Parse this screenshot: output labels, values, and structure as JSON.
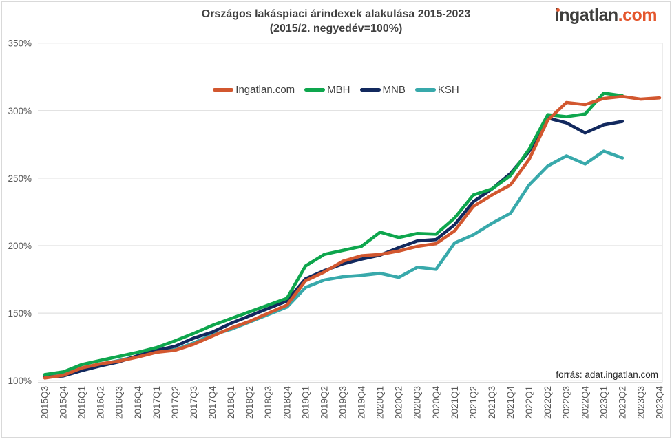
{
  "header": {
    "title_line1": "Országos lakáspiaci árindexek alakulása 2015-2023",
    "title_line2": "(2015/2. negyedév=100%)",
    "logo_brand": "ingatlan",
    "logo_tld": ".com"
  },
  "source_note": "forrás: adat.ingatlan.com",
  "colors": {
    "grid": "#D9D9D9",
    "axis_text": "#595959",
    "title_text": "#404040",
    "source_text": "#262626",
    "logo_dark": "#3E3E3C",
    "logo_accent": "#E4572E"
  },
  "chart_data": {
    "type": "line",
    "title": "Országos lakáspiaci árindexek alakulása 2015-2023",
    "subtitle": "(2015/2. negyedév=100%)",
    "x": [
      "2015Q3",
      "2015Q4",
      "2016Q1",
      "2016Q2",
      "2016Q3",
      "2016Q4",
      "2017Q1",
      "2017Q2",
      "2017Q3",
      "2017Q4",
      "2018Q1",
      "2018Q2",
      "2018Q3",
      "2018Q4",
      "2019Q1",
      "2019Q2",
      "2019Q3",
      "2019Q4",
      "2020Q1",
      "2020Q2",
      "2020Q3",
      "2020Q4",
      "2021Q1",
      "2021Q2",
      "2021Q3",
      "2021Q4",
      "2022Q1",
      "2022Q2",
      "2022Q3",
      "2022Q4",
      "2023Q1",
      "2023Q2",
      "2023Q3",
      "2023Q4"
    ],
    "y_ticks": [
      100,
      150,
      200,
      250,
      300,
      350
    ],
    "y_tick_suffix": "%",
    "ylim": [
      95,
      360
    ],
    "grid": "horizontal",
    "legend_position": "top",
    "series": [
      {
        "name": "Ingatlan.com",
        "color": "#D2572F",
        "values": [
          102,
          104,
          109.5,
          112.5,
          114.5,
          117.5,
          121,
          122.5,
          127,
          133,
          139,
          144,
          150,
          156,
          174,
          180.5,
          188.5,
          192.5,
          193.5,
          196,
          199.5,
          201.5,
          211,
          229,
          237.5,
          245,
          264,
          293,
          306,
          304.5,
          309,
          310.5,
          308.5,
          309.5
        ]
      },
      {
        "name": "MBH",
        "color": "#0EA64D",
        "values": [
          104.5,
          106.5,
          112,
          115,
          118,
          121,
          124.5,
          129.5,
          135,
          141,
          146,
          151,
          156,
          161,
          185,
          193.5,
          196.5,
          199.5,
          210,
          206,
          209,
          208.5,
          220.5,
          237.5,
          242,
          252,
          271.5,
          297,
          295.5,
          297.5,
          313,
          311
        ]
      },
      {
        "name": "MNB",
        "color": "#12295E",
        "values": [
          102.5,
          103.5,
          107.5,
          111,
          114,
          118.5,
          122.5,
          125.5,
          131.5,
          136,
          142.5,
          148,
          153.5,
          159,
          175.5,
          181.5,
          186.5,
          190,
          193,
          198.5,
          203.5,
          204.5,
          215.5,
          232.5,
          242,
          253.5,
          270,
          294.5,
          291,
          283.5,
          289.5,
          292
        ]
      },
      {
        "name": "KSH",
        "color": "#38A9AB",
        "values": [
          103.5,
          106,
          109,
          112,
          115,
          118,
          121,
          123,
          128,
          134,
          138,
          143.5,
          149,
          154.5,
          169,
          174.5,
          177,
          178,
          179.5,
          176.5,
          184,
          182.5,
          202,
          208,
          216.5,
          224,
          245,
          259,
          266.5,
          260.5,
          270,
          265
        ]
      }
    ]
  }
}
